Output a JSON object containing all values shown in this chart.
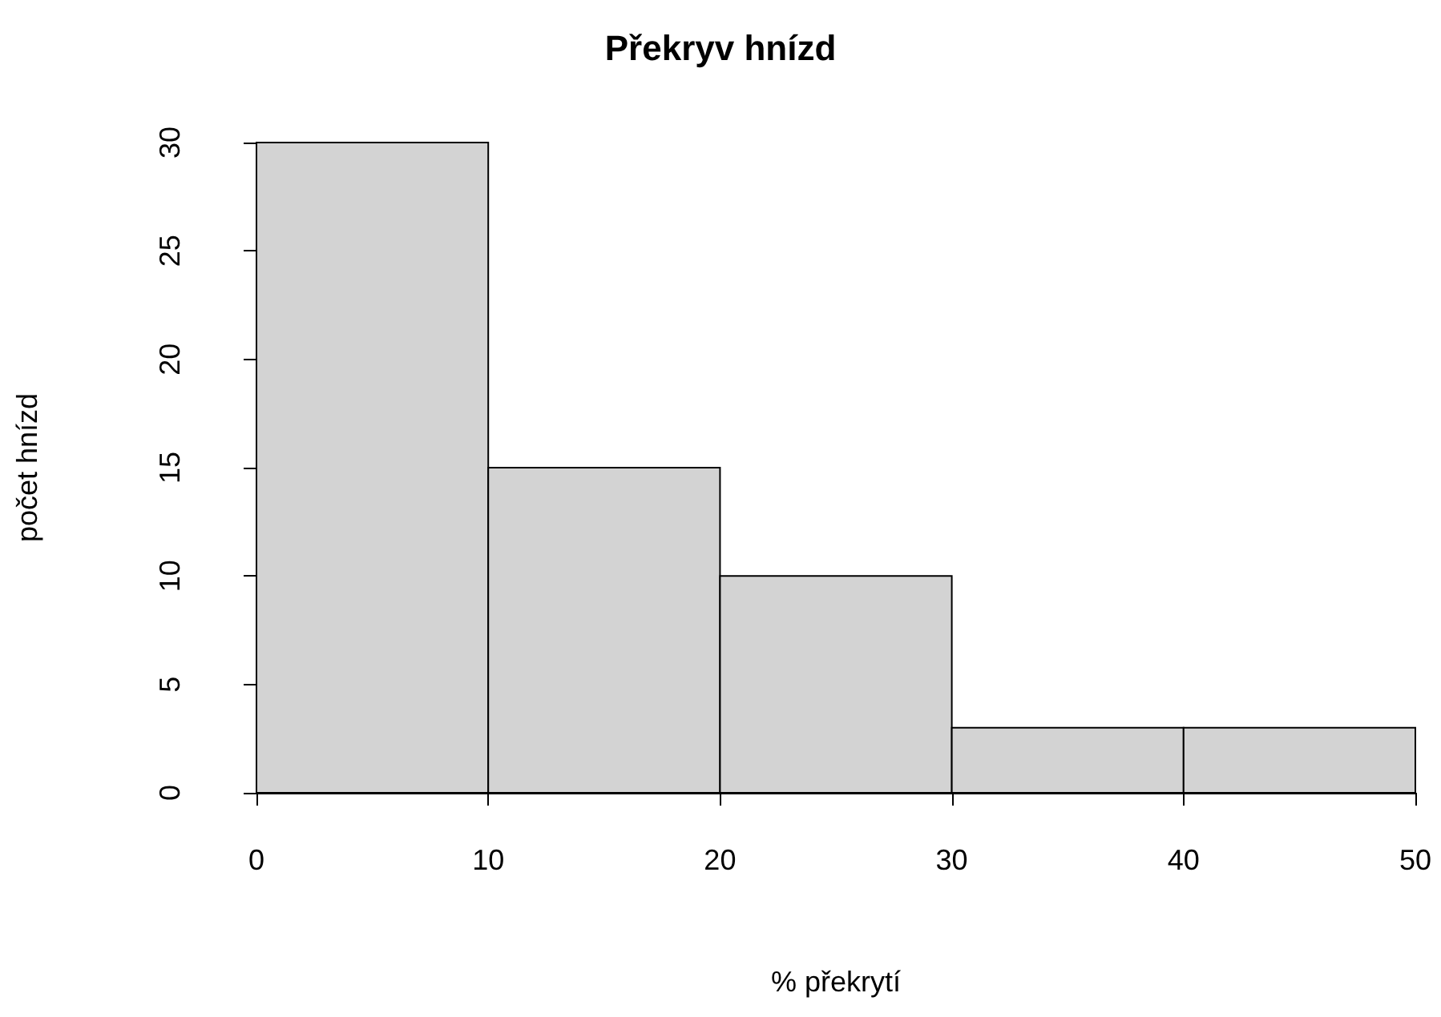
{
  "chart_data": {
    "type": "histogram",
    "title": "Překryv hnízd",
    "xlabel": "% překrytí",
    "ylabel": "počet hnízd",
    "bins": [
      0,
      10,
      20,
      30,
      40,
      50
    ],
    "values": [
      30,
      15,
      10,
      3,
      3
    ],
    "color": "#d3d3d3",
    "xlim": [
      0,
      50
    ],
    "ylim": [
      0,
      30
    ],
    "xticks": [
      0,
      10,
      20,
      30,
      40,
      50
    ],
    "yticks": [
      0,
      5,
      10,
      15,
      20,
      25,
      30
    ]
  }
}
